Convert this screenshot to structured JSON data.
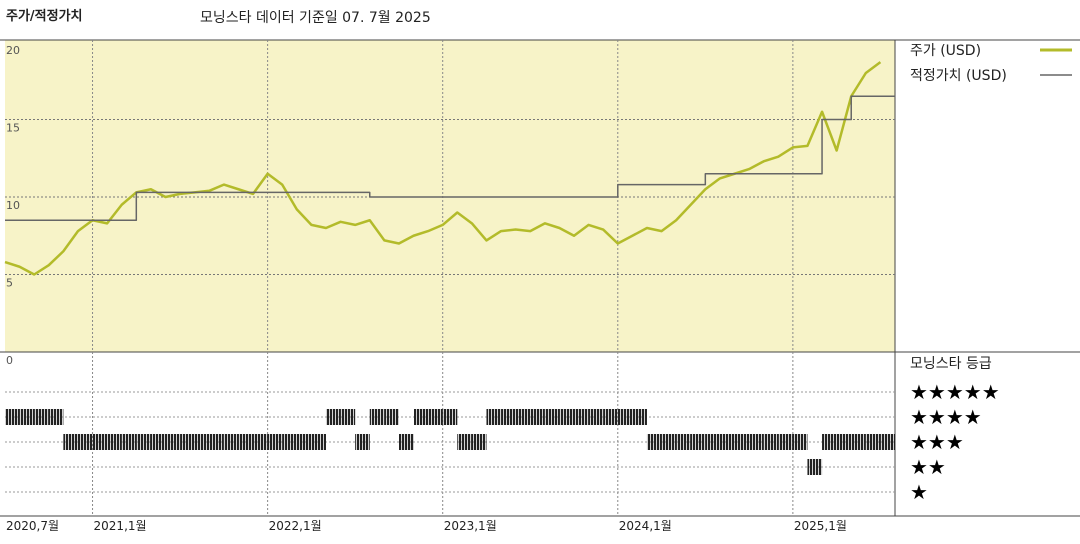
{
  "chart_data": {
    "type": "line",
    "title": "주가/적정가치",
    "subtitle": "모닝스타 데이터 기준일 07. 7월 2025",
    "x": [
      "2020-07",
      "2020-08",
      "2020-09",
      "2020-10",
      "2020-11",
      "2020-12",
      "2021-01",
      "2021-02",
      "2021-03",
      "2021-04",
      "2021-05",
      "2021-06",
      "2021-07",
      "2021-08",
      "2021-09",
      "2021-10",
      "2021-11",
      "2021-12",
      "2022-01",
      "2022-02",
      "2022-03",
      "2022-04",
      "2022-05",
      "2022-06",
      "2022-07",
      "2022-08",
      "2022-09",
      "2022-10",
      "2022-11",
      "2022-12",
      "2023-01",
      "2023-02",
      "2023-03",
      "2023-04",
      "2023-05",
      "2023-06",
      "2023-07",
      "2023-08",
      "2023-09",
      "2023-10",
      "2023-11",
      "2023-12",
      "2024-01",
      "2024-02",
      "2024-03",
      "2024-04",
      "2024-05",
      "2024-06",
      "2024-07",
      "2024-08",
      "2024-09",
      "2024-10",
      "2024-11",
      "2024-12",
      "2025-01",
      "2025-02",
      "2025-03",
      "2025-04",
      "2025-05",
      "2025-06",
      "2025-07"
    ],
    "series": [
      {
        "name": "주가 (USD)",
        "color": "#b3bb2a",
        "style": "line",
        "values": [
          5.8,
          5.5,
          5.0,
          5.6,
          6.5,
          7.8,
          8.5,
          8.3,
          9.5,
          10.3,
          10.5,
          10.0,
          10.2,
          10.3,
          10.4,
          10.8,
          10.5,
          10.2,
          11.5,
          10.8,
          9.2,
          8.2,
          8.0,
          8.4,
          8.2,
          8.5,
          7.2,
          7.0,
          7.5,
          7.8,
          8.2,
          9.0,
          8.3,
          7.2,
          7.8,
          7.9,
          7.8,
          8.3,
          8.0,
          7.5,
          8.2,
          7.9,
          7.0,
          7.5,
          8.0,
          7.8,
          8.5,
          9.5,
          10.5,
          11.2,
          11.5,
          11.8,
          12.3,
          12.6,
          13.2,
          13.3,
          15.5,
          13.0,
          16.5,
          18.0,
          18.7
        ]
      },
      {
        "name": "적정가치 (USD)",
        "color": "#666666",
        "style": "step",
        "values": [
          8.5,
          8.5,
          8.5,
          8.5,
          8.5,
          8.5,
          8.5,
          8.5,
          8.5,
          10.3,
          10.3,
          10.3,
          10.3,
          10.3,
          10.3,
          10.3,
          10.3,
          10.3,
          10.3,
          10.3,
          10.3,
          10.3,
          10.3,
          10.3,
          10.3,
          10.0,
          10.0,
          10.0,
          10.0,
          10.0,
          10.0,
          10.0,
          10.0,
          10.0,
          10.0,
          10.0,
          10.0,
          10.0,
          10.0,
          10.0,
          10.0,
          10.0,
          10.8,
          10.8,
          10.8,
          10.8,
          10.8,
          10.8,
          11.5,
          11.5,
          11.5,
          11.5,
          11.5,
          11.5,
          11.5,
          11.5,
          15.0,
          15.0,
          16.5,
          16.5,
          16.5
        ]
      }
    ],
    "xlim": [
      "2020-07",
      "2025-08"
    ],
    "xticks": [
      {
        "value": "2020-07",
        "label": "2020,7월"
      },
      {
        "value": "2021-01",
        "label": "2021,1월"
      },
      {
        "value": "2022-01",
        "label": "2022,1월"
      },
      {
        "value": "2023-01",
        "label": "2023,1월"
      },
      {
        "value": "2024-01",
        "label": "2024,1월"
      },
      {
        "value": "2025-01",
        "label": "2025,1월"
      }
    ],
    "ylim": [
      0,
      20
    ],
    "yticks": [
      0,
      5,
      10,
      15,
      20
    ],
    "grid": true,
    "rating": {
      "title": "모닝스타 등급",
      "levels": [
        {
          "value": 5,
          "label": "★★★★★"
        },
        {
          "value": 4,
          "label": "★★★★"
        },
        {
          "value": 3,
          "label": "★★★"
        },
        {
          "value": 2,
          "label": "★★"
        },
        {
          "value": 1,
          "label": "★"
        }
      ],
      "values": [
        4,
        4,
        4,
        4,
        3,
        3,
        3,
        3,
        3,
        3,
        3,
        3,
        3,
        3,
        3,
        3,
        3,
        3,
        3,
        3,
        3,
        3,
        4,
        4,
        3,
        4,
        4,
        3,
        4,
        4,
        4,
        3,
        3,
        4,
        4,
        4,
        4,
        4,
        4,
        4,
        4,
        4,
        4,
        4,
        3,
        3,
        3,
        3,
        3,
        3,
        3,
        3,
        3,
        3,
        3,
        2,
        3,
        3,
        3,
        3,
        3
      ]
    }
  }
}
